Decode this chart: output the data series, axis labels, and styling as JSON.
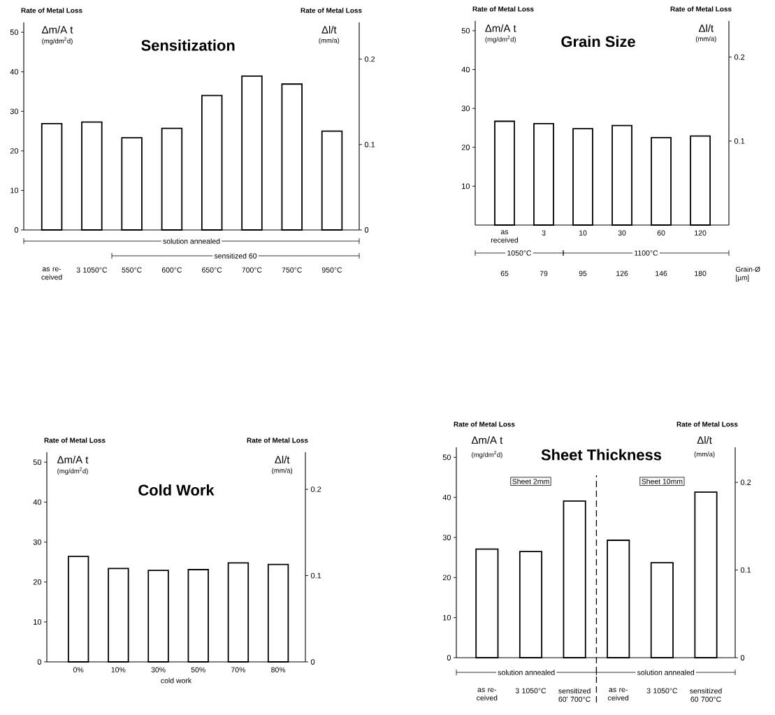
{
  "chart_data": [
    {
      "type": "bar",
      "title": "Sensitization",
      "ylabel": "Rate of Metal Loss",
      "y2label": "Rate of Metal Loss",
      "categories": [
        "as re-ceived",
        "3 1050°C",
        "550°C",
        "600°C",
        "650°C",
        "700°C",
        "750°C",
        "950°C"
      ],
      "values": [
        26.9,
        27.3,
        23.3,
        25.7,
        34.0,
        38.9,
        36.9,
        25.0
      ],
      "color": "#ffffff",
      "ylim": [
        0,
        52.5
      ],
      "yticks": [
        0,
        10,
        20,
        30,
        40,
        50
      ],
      "y2lim": [
        0,
        0.243
      ],
      "y2ticks": [
        0,
        0.1,
        0.2
      ],
      "annotations": [
        "Δm/A t",
        "(mg/dm$^{2}$d)",
        "Δl/t",
        "(mm/a)",
        "solution annealed",
        "sensitized 60"
      ]
    },
    {
      "type": "bar",
      "title": "Grain Size",
      "ylabel": "Rate of Metal Loss",
      "y2label": "Rate of Metal Loss",
      "xlabel": "Grain-Ø [µm]",
      "categories": [
        "as received",
        "3",
        "10",
        "30",
        "60",
        "120"
      ],
      "values": [
        26.7,
        26.1,
        24.8,
        25.6,
        22.5,
        22.9
      ],
      "color": "#ffffff",
      "ylim": [
        0,
        52.5
      ],
      "yticks": [
        10,
        20,
        30,
        40,
        50
      ],
      "y2lim": [
        0,
        0.243
      ],
      "y2ticks": [
        0.1,
        0.2
      ],
      "annotations": [
        "Δm/A t",
        "(mg/dm$^{2}$d)",
        "Δl/t",
        "(mm/a)",
        "1050°C",
        "1100°C",
        "65",
        "79",
        "95",
        "126",
        "146",
        "180"
      ]
    },
    {
      "type": "bar",
      "title": "Cold Work",
      "ylabel": "Rate of Metal Loss",
      "y2label": "Rate of Metal Loss",
      "xlabel": "cold work",
      "categories": [
        "0%",
        "10%",
        "30%",
        "50%",
        "70%",
        "80%"
      ],
      "values": [
        26.4,
        23.4,
        22.9,
        23.1,
        24.8,
        24.4
      ],
      "color": "#ffffff",
      "ylim": [
        0,
        52.5
      ],
      "yticks": [
        0,
        10,
        20,
        30,
        40,
        50
      ],
      "y2lim": [
        0,
        0.243
      ],
      "y2ticks": [
        0,
        0.1,
        0.2
      ],
      "annotations": [
        "Δm/A t",
        "(mg/dm$^{2}$d)",
        "Δl/t",
        "(mm/a)"
      ]
    },
    {
      "type": "bar",
      "title": "Sheet Thickness",
      "ylabel": "Rate of Metal Loss",
      "y2label": "Rate of Metal Loss",
      "categories": [
        "as re-ceived",
        "3 1050°C",
        "sensitized 60' 700°C",
        "as re-ceived",
        "3 1050°C",
        "sensitized 60 700°C"
      ],
      "values": [
        27.1,
        26.5,
        39.1,
        29.3,
        23.7,
        41.3
      ],
      "color": "#ffffff",
      "ylim": [
        0,
        52.5
      ],
      "yticks": [
        0,
        10,
        20,
        30,
        40,
        50
      ],
      "y2lim": [
        0,
        0.24
      ],
      "y2ticks": [
        0,
        0.1,
        0.2
      ],
      "annotations": [
        "Δm/A t",
        "(mg/dm$^{2}$d)",
        "Δl/t",
        "(mm/a)",
        "Sheet 2mm",
        "Sheet 10mm",
        "solution annealed",
        "solution annealed"
      ]
    }
  ]
}
